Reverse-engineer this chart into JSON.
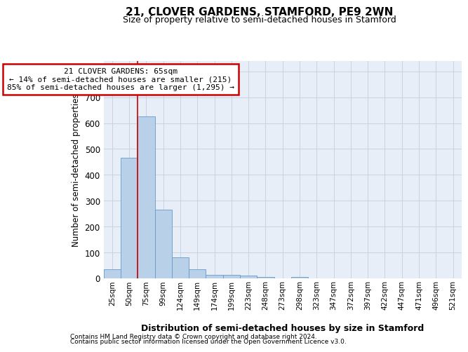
{
  "title_line1": "21, CLOVER GARDENS, STAMFORD, PE9 2WN",
  "title_line2": "Size of property relative to semi-detached houses in Stamford",
  "xlabel": "Distribution of semi-detached houses by size in Stamford",
  "ylabel": "Number of semi-detached properties",
  "categories": [
    "25sqm",
    "50sqm",
    "75sqm",
    "99sqm",
    "124sqm",
    "149sqm",
    "174sqm",
    "199sqm",
    "223sqm",
    "248sqm",
    "273sqm",
    "298sqm",
    "323sqm",
    "347sqm",
    "372sqm",
    "397sqm",
    "422sqm",
    "447sqm",
    "471sqm",
    "496sqm",
    "521sqm"
  ],
  "values": [
    35,
    465,
    625,
    265,
    80,
    35,
    13,
    13,
    10,
    6,
    0,
    6,
    0,
    0,
    0,
    0,
    0,
    0,
    0,
    0,
    0
  ],
  "bar_color": "#b8d0e8",
  "bar_edge_color": "#6699cc",
  "grid_color": "#c8d4e4",
  "background_color": "#e8eef8",
  "red_line_x": 1.5,
  "annotation_text_line1": "21 CLOVER GARDENS: 65sqm",
  "annotation_text_line2": "← 14% of semi-detached houses are smaller (215)",
  "annotation_text_line3": "85% of semi-detached houses are larger (1,295) →",
  "annotation_box_color": "#ffffff",
  "annotation_box_edge": "#cc0000",
  "red_line_color": "#cc0000",
  "ylim": [
    0,
    840
  ],
  "yticks": [
    0,
    100,
    200,
    300,
    400,
    500,
    600,
    700,
    800
  ],
  "footer_line1": "Contains HM Land Registry data © Crown copyright and database right 2024.",
  "footer_line2": "Contains public sector information licensed under the Open Government Licence v3.0."
}
